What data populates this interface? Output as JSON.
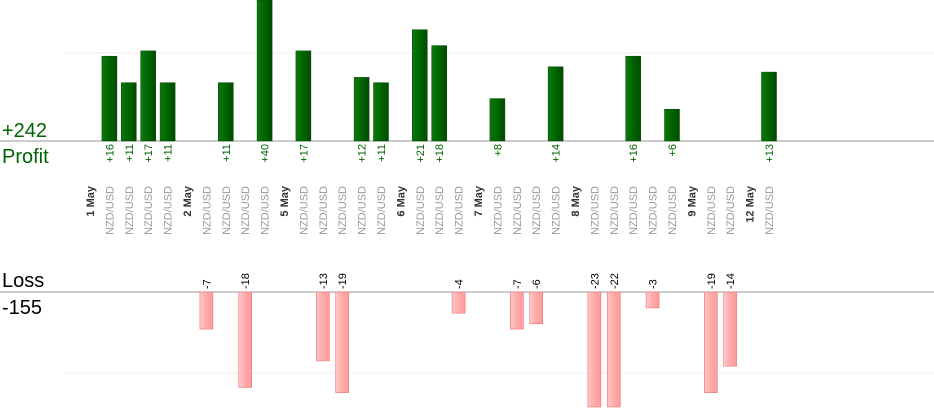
{
  "chart_data": {
    "type": "bar",
    "profit_total": "+242",
    "profit_label": "Profit",
    "loss_label": "Loss",
    "loss_total": "-155",
    "profit_color": "#006400",
    "loss_color": "#ffaaaa",
    "profit_text_color": "#006400",
    "loss_text_color": "#000000",
    "grid": true,
    "categories": [
      {
        "label": "1 May",
        "bold": true
      },
      {
        "label": "NZD/USD",
        "value": 16,
        "value_label": "+16"
      },
      {
        "label": "NZD/USD",
        "value": 11,
        "value_label": "+11"
      },
      {
        "label": "NZD/USD",
        "value": 17,
        "value_label": "+17"
      },
      {
        "label": "NZD/USD",
        "value": 11,
        "value_label": "+11"
      },
      {
        "label": "2 May",
        "bold": true
      },
      {
        "label": "NZD/USD",
        "value": -7,
        "value_label": "-7"
      },
      {
        "label": "NZD/USD",
        "value": 11,
        "value_label": "+11"
      },
      {
        "label": "NZD/USD",
        "value": -18,
        "value_label": "-18"
      },
      {
        "label": "NZD/USD",
        "value": 40,
        "value_label": "+40"
      },
      {
        "label": "5 May",
        "bold": true
      },
      {
        "label": "NZD/USD",
        "value": 17,
        "value_label": "+17"
      },
      {
        "label": "NZD/USD",
        "value": -13,
        "value_label": "-13"
      },
      {
        "label": "NZD/USD",
        "value": -19,
        "value_label": "-19"
      },
      {
        "label": "NZD/USD",
        "value": 12,
        "value_label": "+12"
      },
      {
        "label": "NZD/USD",
        "value": 11,
        "value_label": "+11"
      },
      {
        "label": "6 May",
        "bold": true
      },
      {
        "label": "NZD/USD",
        "value": 21,
        "value_label": "+21"
      },
      {
        "label": "NZD/USD",
        "value": 18,
        "value_label": "+18"
      },
      {
        "label": "NZD/USD",
        "value": -4,
        "value_label": "-4"
      },
      {
        "label": "7 May",
        "bold": true
      },
      {
        "label": "NZD/USD",
        "value": 8,
        "value_label": "+8"
      },
      {
        "label": "NZD/USD",
        "value": -7,
        "value_label": "-7"
      },
      {
        "label": "NZD/USD",
        "value": -6,
        "value_label": "-6"
      },
      {
        "label": "NZD/USD",
        "value": 14,
        "value_label": "+14"
      },
      {
        "label": "8 May",
        "bold": true
      },
      {
        "label": "NZD/USD",
        "value": -23,
        "value_label": "-23"
      },
      {
        "label": "NZD/USD",
        "value": -22,
        "value_label": "-22"
      },
      {
        "label": "NZD/USD",
        "value": 16,
        "value_label": "+16"
      },
      {
        "label": "NZD/USD",
        "value": -3,
        "value_label": "-3"
      },
      {
        "label": "NZD/USD",
        "value": 6,
        "value_label": "+6"
      },
      {
        "label": "9 May",
        "bold": true
      },
      {
        "label": "NZD/USD",
        "value": -19,
        "value_label": "-19"
      },
      {
        "label": "NZD/USD",
        "value": -14,
        "value_label": "-14"
      },
      {
        "label": "12 May",
        "bold": true
      },
      {
        "label": "NZD/USD",
        "value": 13,
        "value_label": "+13"
      }
    ]
  }
}
